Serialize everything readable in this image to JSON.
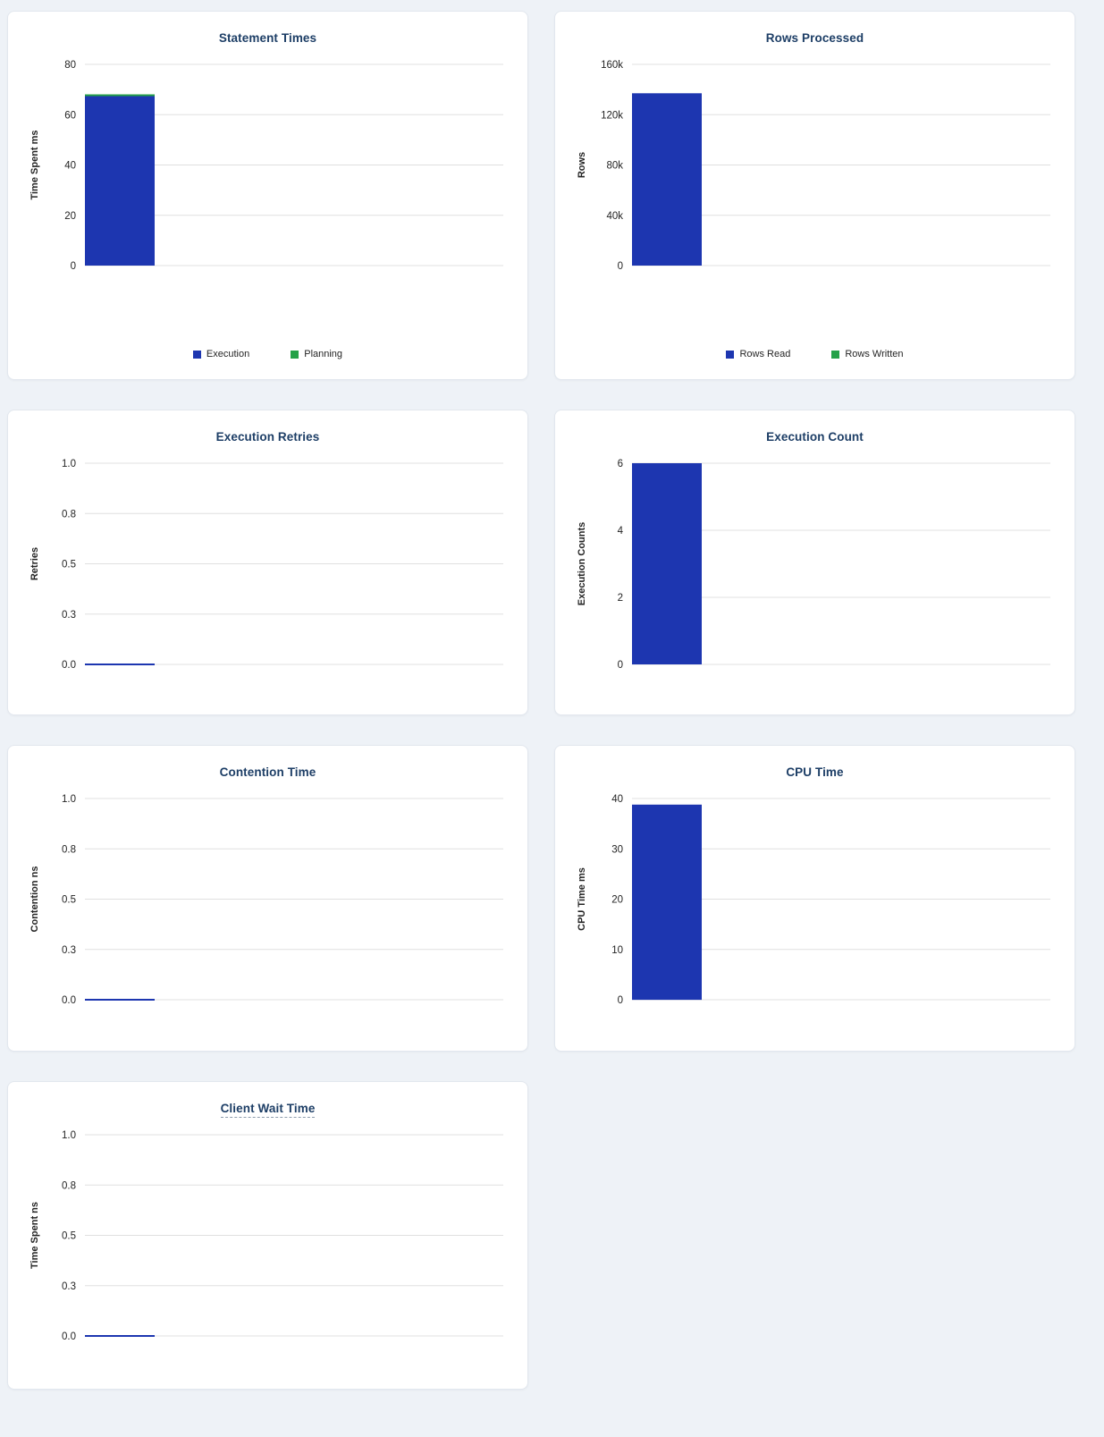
{
  "page": {
    "background": "#eef2f7"
  },
  "colors": {
    "bar_blue": "#1d36b0",
    "bar_green": "#24a148",
    "title_navy": "#1d3e66",
    "gridline": "#e0e0e0",
    "card_background": "#ffffff",
    "card_border": "#e2e7ee"
  },
  "chart_data": [
    {
      "id": "statement-times",
      "type": "bar",
      "stacked": true,
      "title": "Statement Times",
      "ylabel": "Time Spent ms",
      "ylim": [
        0,
        80
      ],
      "ytick_values": [
        0,
        20,
        40,
        60,
        80
      ],
      "ytick_labels": [
        "0",
        "20",
        "40",
        "60",
        "80"
      ],
      "grid": true,
      "legend_position": "bottom",
      "series": [
        {
          "name": "Execution",
          "color": "#1d36b0",
          "values": [
            67.4
          ]
        },
        {
          "name": "Planning",
          "color": "#24a148",
          "values": [
            0.7
          ]
        }
      ]
    },
    {
      "id": "rows-processed",
      "type": "bar",
      "stacked": true,
      "title": "Rows Processed",
      "ylabel": "Rows",
      "ylim": [
        0,
        160000
      ],
      "ytick_values": [
        0,
        40000,
        80000,
        120000,
        160000
      ],
      "ytick_labels": [
        "0",
        "40k",
        "80k",
        "120k",
        "160k"
      ],
      "grid": true,
      "legend_position": "bottom",
      "series": [
        {
          "name": "Rows Read",
          "color": "#1d36b0",
          "values": [
            137000
          ]
        },
        {
          "name": "Rows Written",
          "color": "#24a148",
          "values": [
            0
          ]
        }
      ]
    },
    {
      "id": "execution-retries",
      "type": "line",
      "title": "Execution Retries",
      "ylabel": "Retries",
      "ylim": [
        0,
        1
      ],
      "ytick_values": [
        0,
        0.25,
        0.5,
        0.75,
        1
      ],
      "ytick_labels": [
        "0.0",
        "0.3",
        "0.5",
        "0.8",
        "1.0"
      ],
      "grid": true,
      "legend_position": "none",
      "series": [
        {
          "name": "Retries",
          "color": "#1d36b0",
          "values": [
            0
          ]
        }
      ]
    },
    {
      "id": "execution-count",
      "type": "bar",
      "stacked": false,
      "title": "Execution Count",
      "ylabel": "Execution Counts",
      "ylim": [
        0,
        6
      ],
      "ytick_values": [
        0,
        2,
        4,
        6
      ],
      "ytick_labels": [
        "0",
        "2",
        "4",
        "6"
      ],
      "grid": true,
      "legend_position": "none",
      "series": [
        {
          "name": "Execution Count",
          "color": "#1d36b0",
          "values": [
            6
          ]
        }
      ]
    },
    {
      "id": "contention-time",
      "type": "line",
      "title": "Contention Time",
      "ylabel": "Contention ns",
      "ylim": [
        0,
        1
      ],
      "ytick_values": [
        0,
        0.25,
        0.5,
        0.75,
        1
      ],
      "ytick_labels": [
        "0.0",
        "0.3",
        "0.5",
        "0.8",
        "1.0"
      ],
      "grid": true,
      "legend_position": "none",
      "series": [
        {
          "name": "Contention",
          "color": "#1d36b0",
          "values": [
            0
          ]
        }
      ]
    },
    {
      "id": "cpu-time",
      "type": "bar",
      "stacked": false,
      "title": "CPU Time",
      "ylabel": "CPU Time ms",
      "ylim": [
        0,
        40
      ],
      "ytick_values": [
        0,
        10,
        20,
        30,
        40
      ],
      "ytick_labels": [
        "0",
        "10",
        "20",
        "30",
        "40"
      ],
      "grid": true,
      "legend_position": "none",
      "series": [
        {
          "name": "CPU Time",
          "color": "#1d36b0",
          "values": [
            38.8
          ]
        }
      ]
    },
    {
      "id": "client-wait-time",
      "type": "line",
      "title": "Client Wait Time",
      "title_dashed_underline": true,
      "ylabel": "Time Spent ns",
      "ylim": [
        0,
        1
      ],
      "ytick_values": [
        0,
        0.25,
        0.5,
        0.75,
        1
      ],
      "ytick_labels": [
        "0.0",
        "0.3",
        "0.5",
        "0.8",
        "1.0"
      ],
      "grid": true,
      "legend_position": "none",
      "series": [
        {
          "name": "Client Wait",
          "color": "#1d36b0",
          "values": [
            0
          ]
        }
      ]
    }
  ]
}
